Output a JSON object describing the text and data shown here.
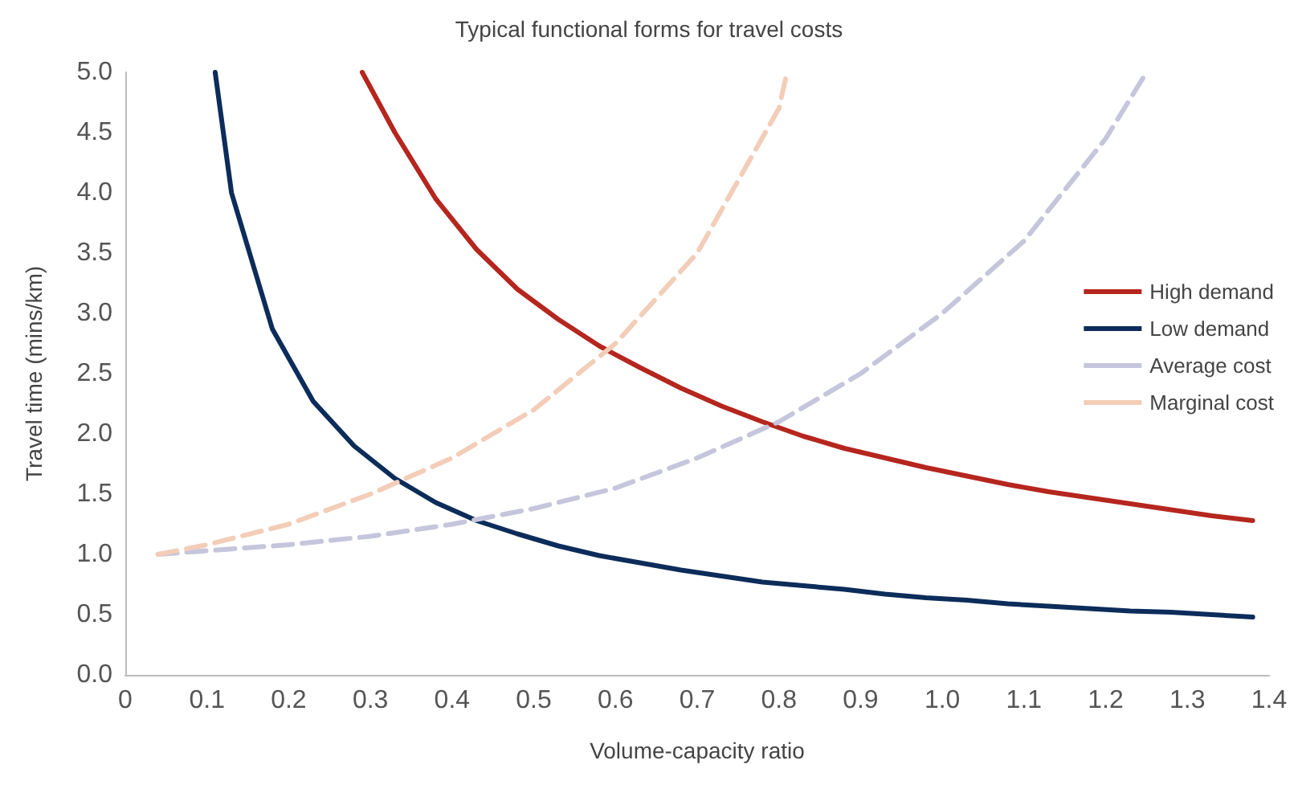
{
  "chart_data": {
    "type": "line",
    "title": "Typical functional forms for travel costs",
    "xlabel": "Volume-capacity ratio",
    "ylabel": "Travel time (mins/km)",
    "xlim": [
      0,
      1.4
    ],
    "xticks": [
      0,
      0.1,
      0.2,
      0.3,
      0.4,
      0.5,
      0.6,
      0.7,
      0.8,
      0.9,
      {
        "value": 1,
        "label": "1.0"
      },
      1.1,
      1.2,
      1.3,
      1.4
    ],
    "ylim": [
      0,
      5
    ],
    "yticks": [
      {
        "value": 0,
        "label": "0.0"
      },
      0.5,
      {
        "value": 1,
        "label": "1.0"
      },
      1.5,
      {
        "value": 2,
        "label": "2.0"
      },
      2.5,
      {
        "value": 3,
        "label": "3.0"
      },
      3.5,
      {
        "value": 4,
        "label": "4.0"
      },
      4.5,
      {
        "value": 5,
        "label": "5.0"
      }
    ],
    "grid": false,
    "legend": "right",
    "marker": "none",
    "series": [
      {
        "name": "High demand",
        "color": "#b5261e",
        "line_style": "solid",
        "x": [
          0.29,
          0.33,
          0.38,
          0.43,
          0.48,
          0.53,
          0.58,
          0.63,
          0.68,
          0.73,
          0.78,
          0.83,
          0.88,
          0.93,
          0.98,
          1.03,
          1.08,
          1.13,
          1.18,
          1.23,
          1.28,
          1.33,
          1.38
        ],
        "values": [
          5.0,
          4.5,
          3.95,
          3.53,
          3.2,
          2.95,
          2.73,
          2.55,
          2.38,
          2.23,
          2.1,
          1.98,
          1.88,
          1.8,
          1.72,
          1.65,
          1.58,
          1.52,
          1.47,
          1.42,
          1.37,
          1.32,
          1.28
        ]
      },
      {
        "name": "Low demand",
        "color": "#0c2c5a",
        "line_style": "solid",
        "x": [
          0.11,
          0.13,
          0.18,
          0.23,
          0.28,
          0.33,
          0.38,
          0.43,
          0.48,
          0.53,
          0.58,
          0.63,
          0.68,
          0.73,
          0.78,
          0.83,
          0.88,
          0.93,
          0.98,
          1.03,
          1.08,
          1.13,
          1.18,
          1.23,
          1.28,
          1.33,
          1.38
        ],
        "values": [
          5.0,
          4.0,
          2.87,
          2.27,
          1.9,
          1.63,
          1.43,
          1.28,
          1.17,
          1.07,
          0.99,
          0.93,
          0.87,
          0.82,
          0.77,
          0.74,
          0.71,
          0.67,
          0.64,
          0.62,
          0.59,
          0.57,
          0.55,
          0.53,
          0.52,
          0.5,
          0.48
        ]
      },
      {
        "name": "Average cost",
        "color": "#c5c5dc",
        "line_style": "dashed",
        "x": [
          0.04,
          0.1,
          0.2,
          0.3,
          0.4,
          0.5,
          0.6,
          0.7,
          0.8,
          0.9,
          1.0,
          1.1,
          1.2,
          1.25
        ],
        "values": [
          1.0,
          1.03,
          1.08,
          1.15,
          1.25,
          1.38,
          1.55,
          1.8,
          2.1,
          2.5,
          3.0,
          3.6,
          4.45,
          5.0
        ]
      },
      {
        "name": "Marginal cost",
        "color": "#f3cdb8",
        "line_style": "dashed",
        "x": [
          0.04,
          0.1,
          0.2,
          0.3,
          0.4,
          0.5,
          0.6,
          0.7,
          0.8,
          0.81
        ],
        "values": [
          1.0,
          1.08,
          1.25,
          1.5,
          1.8,
          2.2,
          2.75,
          3.5,
          4.7,
          5.0
        ]
      }
    ]
  }
}
